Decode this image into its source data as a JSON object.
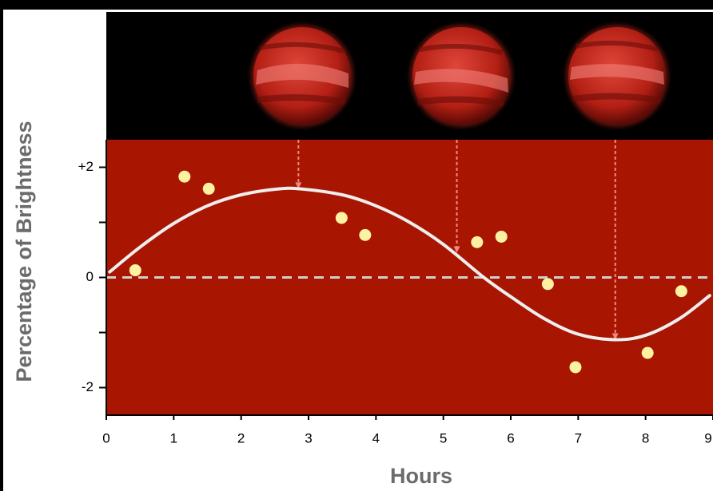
{
  "chart_data": {
    "type": "scatter",
    "xlabel": "Hours",
    "ylabel": "Percentage of Brightness",
    "xlim": [
      0,
      9
    ],
    "ylim": [
      -2.5,
      2.5
    ],
    "xticks": [
      0,
      1,
      2,
      3,
      4,
      5,
      6,
      7,
      8,
      9
    ],
    "yticks": [
      {
        "value": 2,
        "label": "+2"
      },
      0,
      -2
    ],
    "yminorticks": [
      1,
      -1
    ],
    "plot_color": "#a81500",
    "zero_line_color": "#cfcfcf",
    "series": [
      {
        "type": "scatter",
        "color": "#fdf1a2",
        "x": [
          0.43,
          1.16,
          1.52,
          3.49,
          3.84,
          5.5,
          5.86,
          6.55,
          6.96,
          8.03,
          8.53
        ],
        "values": [
          0.13,
          1.83,
          1.61,
          1.08,
          0.77,
          0.64,
          0.74,
          -0.12,
          -1.63,
          -1.37,
          -0.25
        ]
      },
      {
        "type": "line",
        "color": "#eeeeee",
        "x": [
          0.05,
          0.5,
          1,
          1.5,
          2,
          2.5,
          2.85,
          3.5,
          4,
          4.5,
          5,
          5.6,
          6,
          6.5,
          7,
          7.55,
          8,
          8.5,
          8.95
        ],
        "values": [
          0.1,
          0.55,
          0.98,
          1.3,
          1.5,
          1.6,
          1.61,
          1.5,
          1.3,
          1.0,
          0.6,
          0,
          -0.35,
          -0.75,
          -1.03,
          -1.13,
          -1.05,
          -0.75,
          -0.33
        ]
      }
    ],
    "arrows": {
      "color": "#f08a80",
      "x": [
        2.85,
        5.2,
        7.55
      ],
      "values": [
        1.61,
        0.45,
        -1.13
      ]
    }
  }
}
